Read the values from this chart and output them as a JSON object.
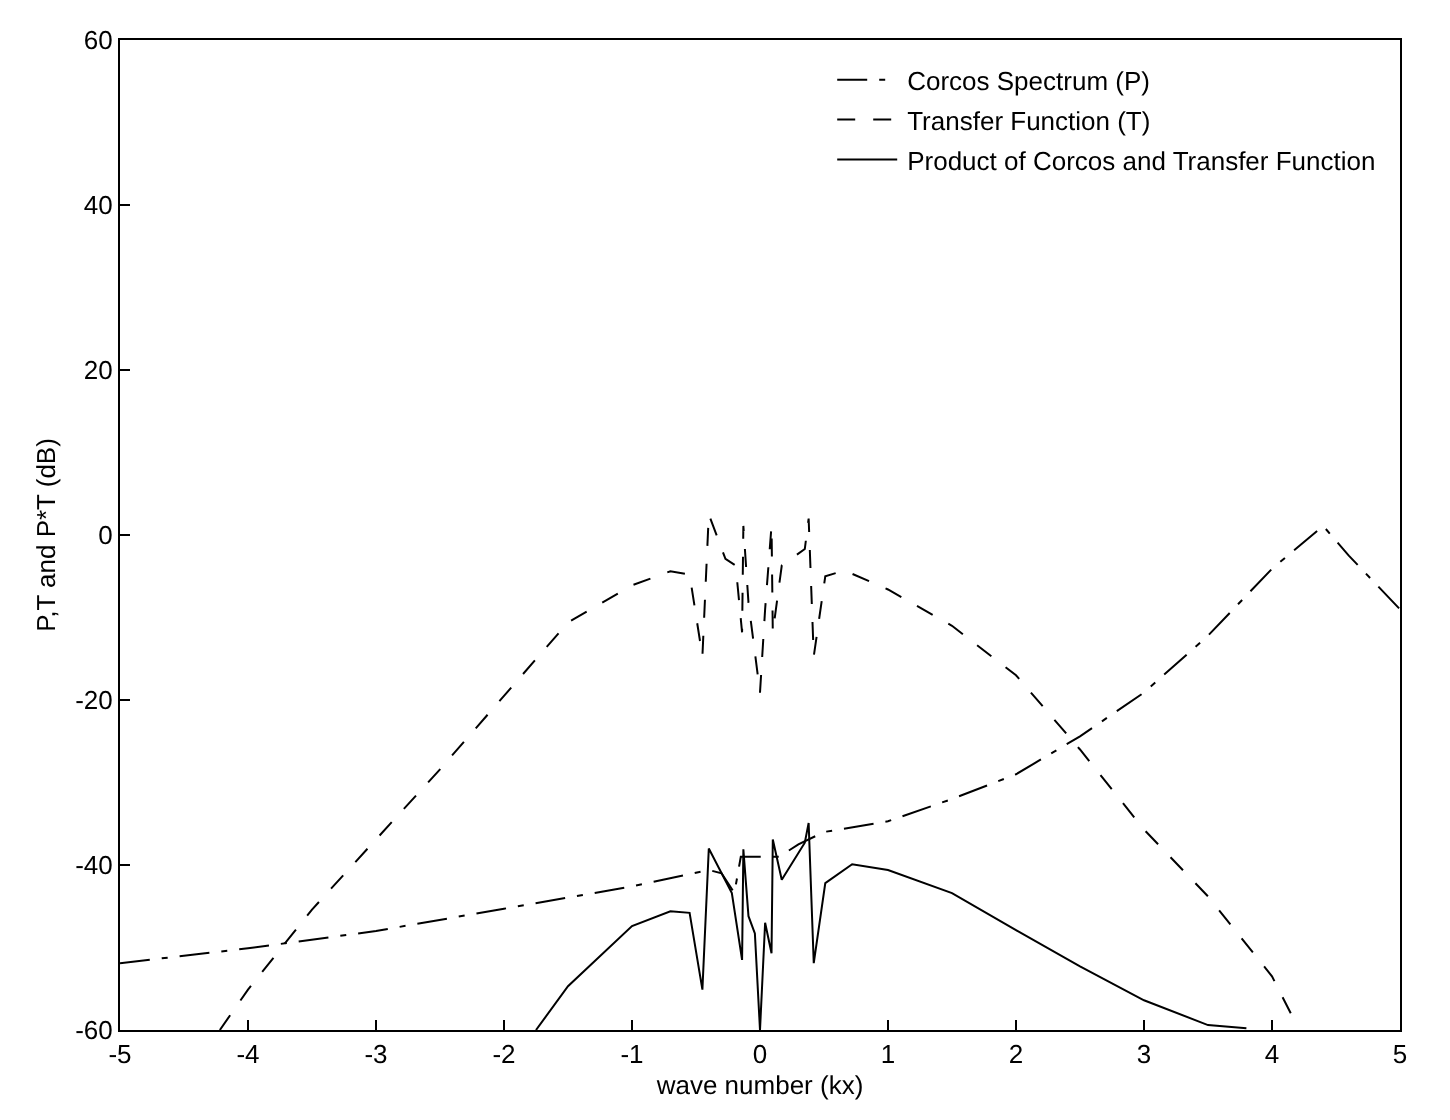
{
  "chart_data": {
    "type": "line",
    "xlabel": "wave number (kx)",
    "ylabel": "P,T and P*T (dB)",
    "xlim": [
      -5,
      5
    ],
    "xticks": [
      -5,
      -4,
      -3,
      -2,
      -1,
      0,
      1,
      2,
      3,
      4,
      5
    ],
    "ylim": [
      -60,
      60
    ],
    "yticks": [
      -60,
      -40,
      -20,
      0,
      20,
      40,
      60
    ],
    "legend": "top right",
    "marker": "none",
    "series": [
      {
        "name": "Corcos Spectrum (P)",
        "color": "#000000",
        "line_style": "dashdot",
        "x": [
          -5,
          -4,
          -3,
          -2,
          -1,
          -0.4,
          -0.3,
          -0.2,
          -0.15,
          0,
          0.15,
          0.3,
          0.5,
          1,
          1.5,
          2,
          2.5,
          3,
          3.5,
          4,
          4.4,
          4.6,
          5
        ],
        "values": [
          -51.9,
          -50.1,
          -48,
          -45.3,
          -42.6,
          -40.6,
          -41,
          -43.4,
          -39,
          -39,
          -39,
          -37.5,
          -36,
          -34.7,
          -32,
          -29,
          -24.4,
          -19.1,
          -12.2,
          -4.1,
          1.1,
          -2.5,
          -9
        ]
      },
      {
        "name": "Transfer Function (T)",
        "color": "#000000",
        "line_style": "dashed",
        "x": [
          -4.22,
          -4,
          -3.5,
          -3,
          -2.5,
          -2,
          -1.5,
          -1,
          -0.7,
          -0.55,
          -0.45,
          -0.4,
          -0.27,
          -0.19,
          -0.14,
          -0.13,
          -0.09,
          0,
          0.04,
          0.09,
          0.1,
          0.17,
          0.35,
          0.38,
          0.42,
          0.51,
          0.66,
          1,
          1.5,
          2,
          2.5,
          3,
          3.5,
          4,
          4.2
        ],
        "values": [
          -60,
          -55.1,
          -45.4,
          -36.9,
          -28.4,
          -19.5,
          -10.6,
          -6.1,
          -4.4,
          -4.8,
          -14.7,
          2.5,
          -2.9,
          -3.7,
          -11.8,
          1.1,
          -8.2,
          -19.1,
          -9,
          1.1,
          -11.8,
          -3.7,
          -1.7,
          2,
          -14.7,
          -5,
          -4.3,
          -6.6,
          -11,
          -17,
          -26,
          -35.7,
          -43.8,
          -53.5,
          -59.6
        ]
      },
      {
        "name": "Product of Corcos and Transfer Function",
        "color": "#000000",
        "line_style": "solid",
        "x": [
          -1.75,
          -1.5,
          -1,
          -0.7,
          -0.55,
          -0.45,
          -0.4,
          -0.22,
          -0.14,
          -0.13,
          -0.09,
          -0.04,
          0,
          0.04,
          0.09,
          0.1,
          0.17,
          0.35,
          0.38,
          0.42,
          0.51,
          0.72,
          1,
          1.5,
          2,
          2.5,
          3,
          3.5,
          3.8
        ],
        "values": [
          -60,
          -54.7,
          -47.4,
          -45.6,
          -45.8,
          -55.1,
          -38,
          -43.4,
          -51.5,
          -38.1,
          -46.2,
          -48.3,
          -60,
          -47,
          -50.7,
          -36.9,
          -41.8,
          -37.3,
          -34.9,
          -51.9,
          -42.2,
          -39.9,
          -40.6,
          -43.4,
          -47.9,
          -52.3,
          -56.4,
          -59.4,
          -59.8
        ]
      }
    ]
  }
}
